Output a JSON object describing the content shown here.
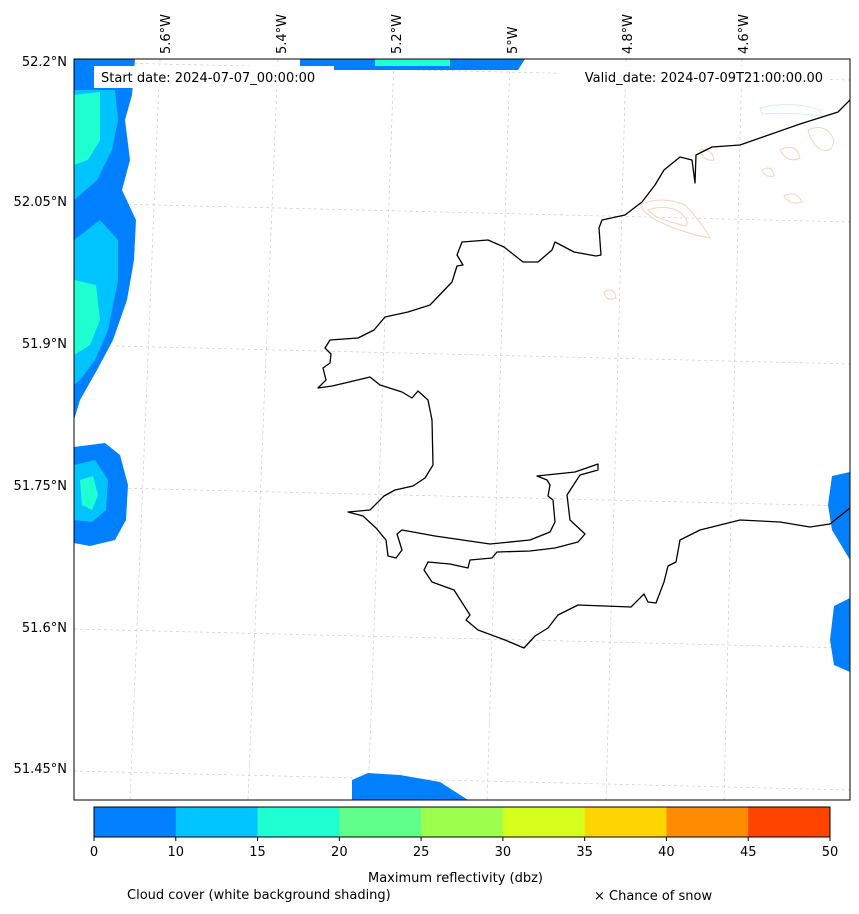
{
  "map": {
    "start_date": "Start date: 2024-07-07_00:00:00",
    "valid_date": "Valid_date: 2024-07-09T21:00:00.00",
    "lon_ticks": [
      "5.6°W",
      "5.4°W",
      "5.2°W",
      "5°W",
      "4.8°W",
      "4.6°W"
    ],
    "lat_ticks": [
      "52.2°N",
      "52.05°N",
      "51.9°N",
      "51.75°N",
      "51.6°N",
      "51.45°N"
    ],
    "colors": {
      "band_10": "#0080ff",
      "band_15": "#00c4ff",
      "band_20": "#1effd2",
      "band_25": "#5fff8a",
      "band_30": "#9cff4e",
      "band_35": "#d6ff1e",
      "band_40": "#ffd500",
      "band_45": "#ff8c00",
      "band_50": "#ff4400",
      "coastline": "#000000",
      "grid": "#cccccc"
    }
  },
  "colorbar": {
    "ticks": [
      "0",
      "10",
      "15",
      "20",
      "25",
      "30",
      "35",
      "40",
      "45",
      "50"
    ],
    "label": "Maximum reflectivity (dbz)",
    "colors": [
      "#0080ff",
      "#00c4ff",
      "#1effd2",
      "#5fff8a",
      "#9cff4e",
      "#d6ff1e",
      "#ffd500",
      "#ff8c00",
      "#ff4400"
    ]
  },
  "legend": {
    "cloud_cover": "Cloud cover (white background shading)",
    "snow": "× Chance of snow"
  }
}
